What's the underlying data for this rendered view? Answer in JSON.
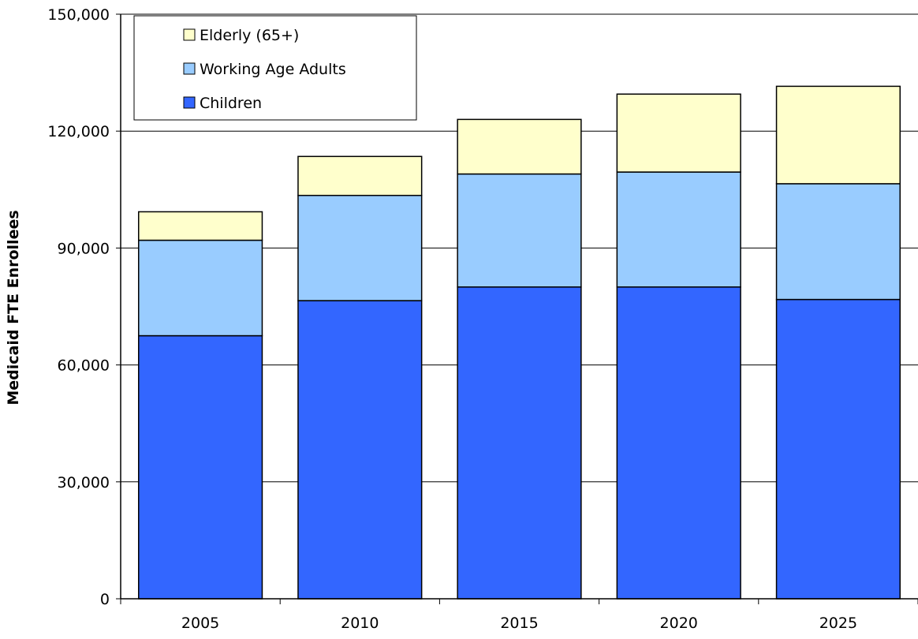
{
  "chart_data": {
    "type": "bar",
    "stacked": true,
    "categories": [
      "2005",
      "2010",
      "2015",
      "2020",
      "2025"
    ],
    "series": [
      {
        "name": "Children",
        "color": "#3366ff",
        "values": [
          67500,
          76500,
          80000,
          80000,
          76800
        ]
      },
      {
        "name": "Working Age Adults",
        "color": "#99ccff",
        "values": [
          24500,
          27000,
          29000,
          29500,
          29700
        ]
      },
      {
        "name": "Elderly (65+)",
        "color": "#ffffcc",
        "values": [
          7300,
          10000,
          14000,
          20000,
          25000
        ]
      }
    ],
    "title": "",
    "xlabel": "",
    "ylabel": "Medicaid FTE Enrollees",
    "ylim": [
      0,
      150000
    ],
    "yticks": [
      0,
      30000,
      60000,
      90000,
      120000,
      150000
    ],
    "ytick_labels": [
      "0",
      "30,000",
      "60,000",
      "90,000",
      "120,000",
      "150,000"
    ],
    "grid": true,
    "legend": {
      "placement": "top-left",
      "order": [
        "Elderly (65+)",
        "Working Age Adults",
        "Children"
      ]
    }
  }
}
